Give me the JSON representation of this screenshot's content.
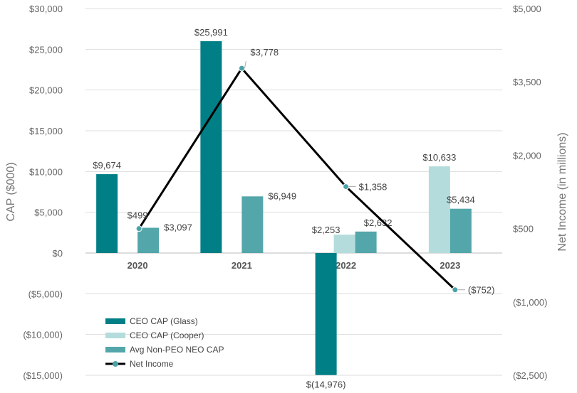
{
  "chart_data": {
    "type": "bar",
    "categories": [
      "2020",
      "2021",
      "2022",
      "2023"
    ],
    "series": [
      {
        "name": "CEO CAP (Glass)",
        "axis": "left",
        "values": [
          9674,
          25991,
          -14976,
          null
        ],
        "labels": [
          "$9,674",
          "$25,991",
          "$(14,976)",
          null
        ],
        "color": "#007f86"
      },
      {
        "name": "CEO CAP (Cooper)",
        "axis": "left",
        "values": [
          null,
          null,
          2253,
          10633
        ],
        "labels": [
          null,
          null,
          "$2,253",
          "$10,633"
        ],
        "color": "#b5dcdc"
      },
      {
        "name": "Avg Non-PEO NEO CAP",
        "axis": "left",
        "values": [
          3097,
          6949,
          2632,
          5434
        ],
        "labels": [
          "$3,097",
          "$6,949",
          "$2,632",
          "$5,434"
        ],
        "color": "#53a6aa"
      }
    ],
    "line": {
      "name": "Net Income",
      "axis": "right",
      "values": [
        499,
        3778,
        1358,
        -752
      ],
      "labels": [
        "$499",
        "$3,778",
        "$1,358",
        "($752)"
      ],
      "color": "#000000",
      "marker_color": "#4aa3a8"
    },
    "ylabel": "CAP ($000)",
    "y2label": "Net Income (in millions)",
    "ylim": [
      -15000,
      30000
    ],
    "y2lim": [
      -2500,
      5000
    ],
    "yticks": [
      30000,
      25000,
      20000,
      15000,
      10000,
      5000,
      0,
      -5000,
      -10000,
      -15000
    ],
    "ytick_labels": [
      "$30,000",
      "$25,000",
      "$20,000",
      "$15,000",
      "$10,000",
      "$5,000",
      "$0",
      "($5,000)",
      "($10,000)",
      "($15,000)"
    ],
    "y2ticks": [
      5000,
      3500,
      2000,
      500,
      -1000,
      -2500
    ],
    "y2tick_labels": [
      "$5,000",
      "$3,500",
      "$2,000",
      "$500",
      "($1,000)",
      "($2,500)"
    ],
    "grid": true,
    "legend_position": "bottom-left"
  }
}
